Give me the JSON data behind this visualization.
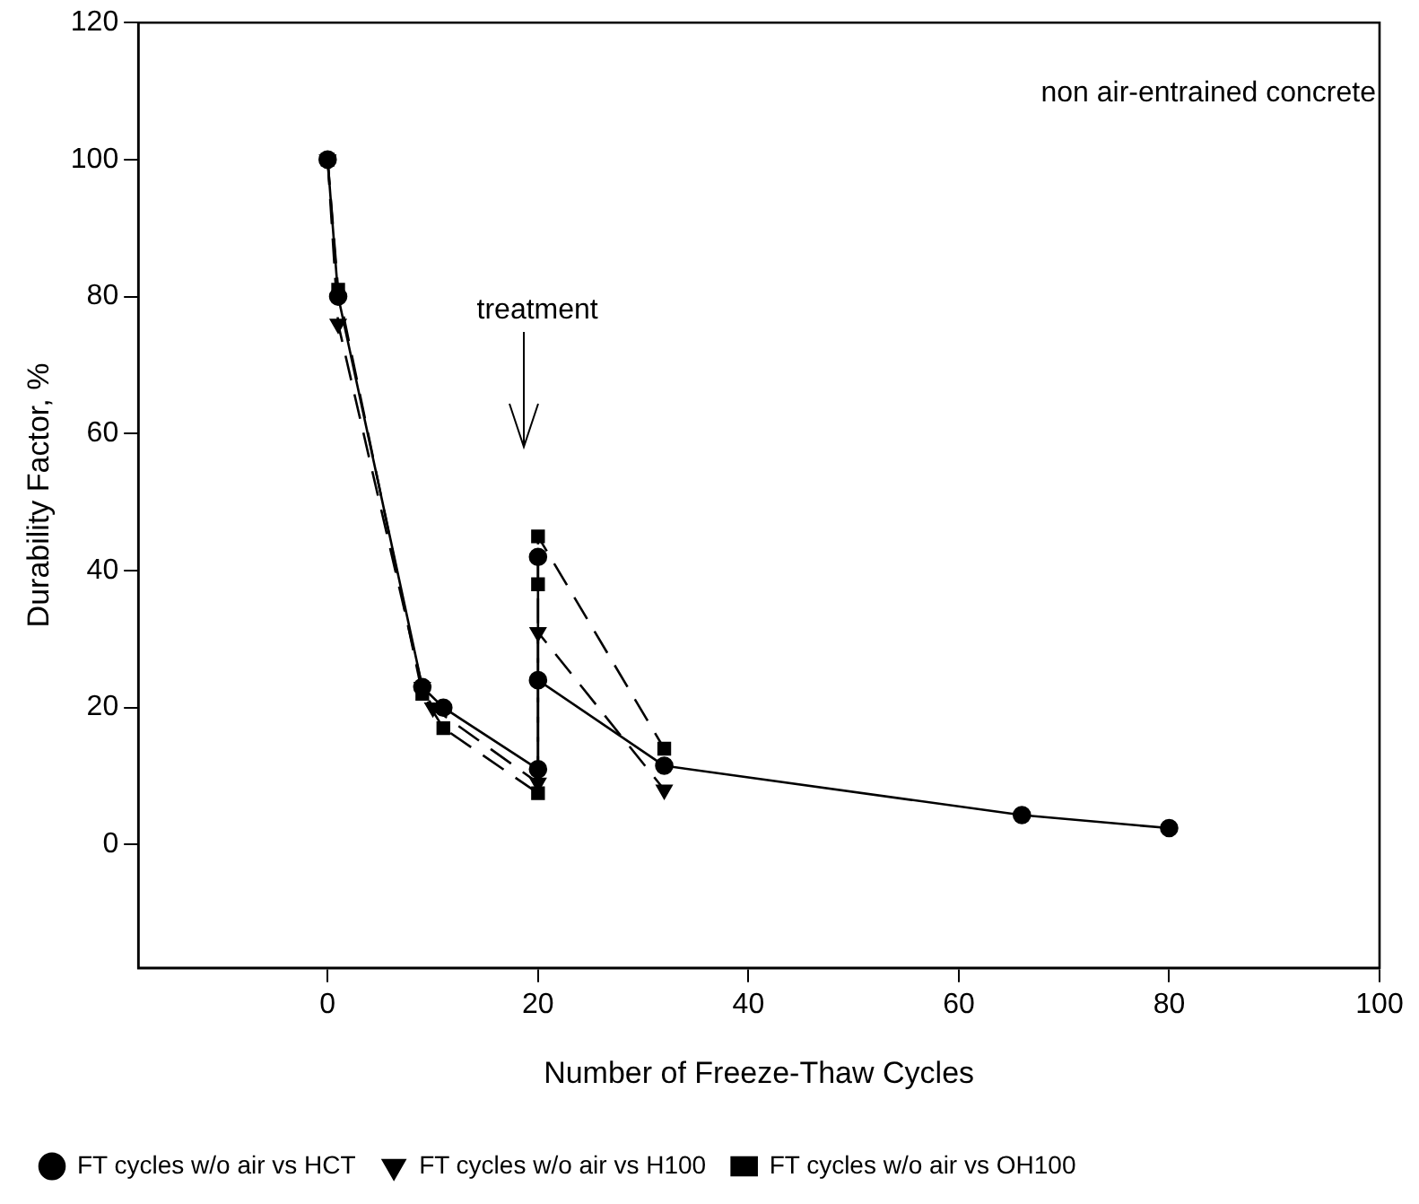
{
  "chart_data": {
    "type": "line",
    "xlabel": "Number of Freeze-Thaw Cycles",
    "ylabel": "Durability Factor, %",
    "xlim": [
      -18,
      100
    ],
    "xticks": [
      0,
      20,
      40,
      60,
      80,
      100
    ],
    "ylim": [
      -18,
      120
    ],
    "yticks": [
      0,
      20,
      40,
      60,
      80,
      100,
      120
    ],
    "grid": false,
    "legend": "bottom",
    "annotations": [
      "non air-entrained concrete",
      "treatment"
    ],
    "series": [
      {
        "name": "FT cycles w/o air vs HCT",
        "color": "#000000",
        "marker": "circle",
        "line_style": "solid",
        "x": [
          0,
          1,
          9,
          11,
          20,
          20,
          20,
          32,
          66,
          80
        ],
        "values": [
          100,
          80,
          23,
          20,
          11,
          42,
          24,
          11.5,
          4.3,
          2.4
        ]
      },
      {
        "name": "FT cycles w/o air vs H100",
        "color": "#000000",
        "marker": "triangle",
        "line_style": "dashed",
        "x": [
          0,
          1,
          9,
          10,
          20,
          20,
          32
        ],
        "values": [
          100,
          76,
          23,
          20,
          9,
          31,
          8
        ]
      },
      {
        "name": "FT cycles w/o air vs OH100",
        "color": "#000000",
        "marker": "square",
        "line_style": "dashed",
        "x": [
          0,
          1,
          9,
          11,
          20,
          20,
          20,
          32
        ],
        "values": [
          100,
          81,
          22,
          17,
          7.5,
          38,
          45,
          14
        ]
      }
    ]
  }
}
